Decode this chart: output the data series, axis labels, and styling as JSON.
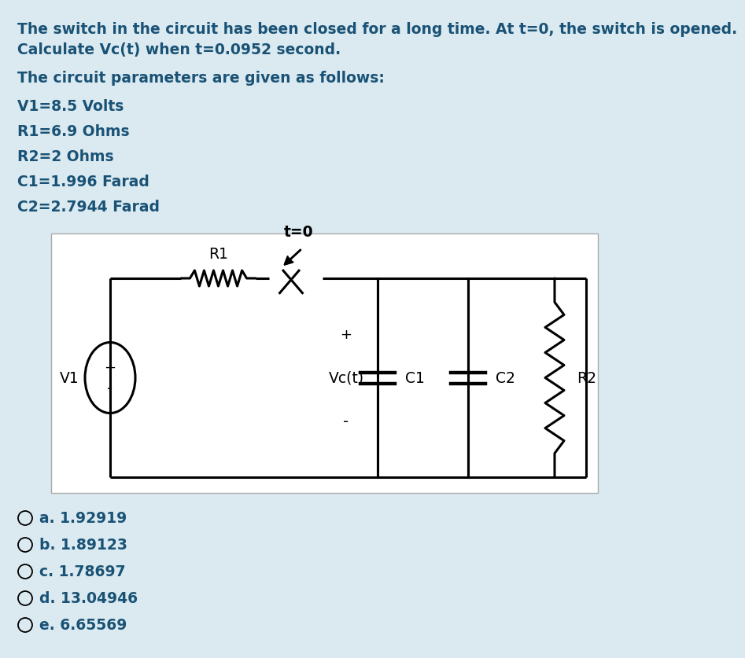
{
  "background_color": "#daeaf0",
  "circuit_bg": "#ffffff",
  "title_lines": [
    "The switch in the circuit has been closed for a long time. At t=0, the switch is opened.",
    "Calculate Vc(t) when t=0.0952 second."
  ],
  "params_header": "The circuit parameters are given as follows:",
  "params": [
    "V1=8.5 Volts",
    "R1=6.9 Ohms",
    "R2=2 Ohms",
    "C1=1.996 Farad",
    "C2=2.7944 Farad"
  ],
  "answers": [
    "a. 1.92919",
    "b. 1.89123",
    "c. 1.78697",
    "d. 13.04946",
    "e. 6.65569"
  ],
  "text_color": "#1a5276",
  "font_size": 13.5
}
